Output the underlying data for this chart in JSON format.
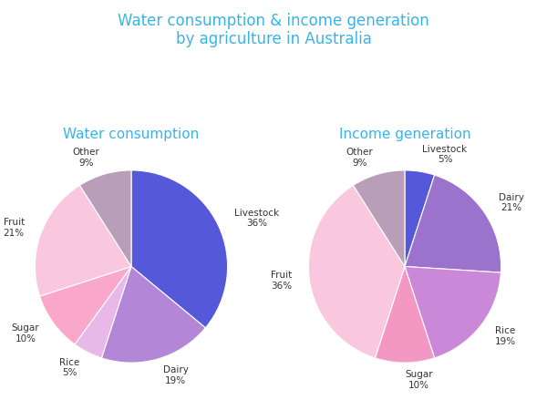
{
  "title": "Water consumption & income generation\nby agriculture in Australia",
  "title_color": "#3ab4e8",
  "title_fontsize": 12,
  "chart1_title": "Water consumption",
  "chart2_title": "Income generation",
  "subtitle_color": "#3ab4e8",
  "subtitle_fontsize": 11,
  "water": {
    "labels": [
      "Livestock",
      "Dairy",
      "Rice",
      "Sugar",
      "Fruit",
      "Other"
    ],
    "values": [
      36,
      19,
      5,
      10,
      21,
      9
    ],
    "colors": [
      "#5558d9",
      "#b386d8",
      "#e8b8e8",
      "#f9a8cc",
      "#f9c8de",
      "#b89eb8"
    ],
    "startangle": 90,
    "label_fontsize": 7.5
  },
  "income": {
    "labels": [
      "Livestock",
      "Dairy",
      "Rice",
      "Sugar",
      "Fruit",
      "Other"
    ],
    "values": [
      5,
      21,
      19,
      10,
      36,
      9
    ],
    "colors": [
      "#5558d9",
      "#9b72cc",
      "#cc88d8",
      "#f398c3",
      "#f9c8de",
      "#b89eb8"
    ],
    "startangle": 90,
    "label_fontsize": 7.5
  },
  "background_color": "#ffffff",
  "label_color": "#333333"
}
